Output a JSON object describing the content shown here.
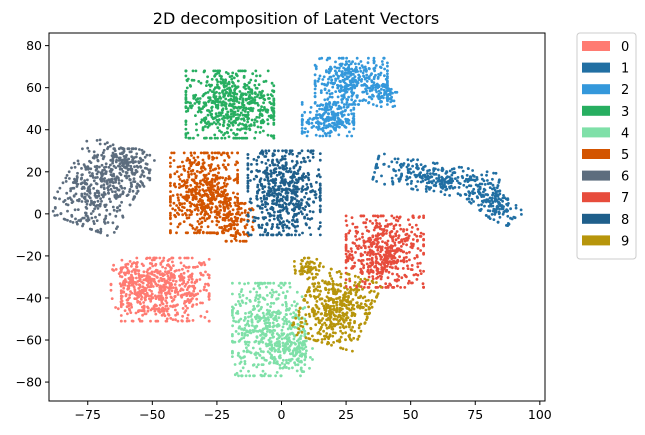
{
  "chart_data": {
    "type": "scatter",
    "title": "2D decomposition of Latent Vectors",
    "xlabel": "",
    "ylabel": "",
    "xlim": [
      -90,
      102
    ],
    "ylim": [
      -89,
      86
    ],
    "x_ticks": [
      -75,
      -50,
      -25,
      0,
      25,
      50,
      75,
      100
    ],
    "y_ticks": [
      -80,
      -60,
      -40,
      -20,
      0,
      20,
      40,
      60,
      80
    ],
    "grid": false,
    "legend_placement": "outside right",
    "series": [
      {
        "name": "0",
        "color": "#ff7b72",
        "clusters": [
          {
            "cx": -45,
            "cy": -36,
            "rx": 17,
            "ry": 15,
            "n": 520
          },
          {
            "cx": -58,
            "cy": -34,
            "rx": 8,
            "ry": 12,
            "n": 130
          }
        ]
      },
      {
        "name": "1",
        "color": "#216fa3",
        "clusters": [
          {
            "cx": 60,
            "cy": 17,
            "rx": 24,
            "ry": 7,
            "n": 300,
            "rot": -12
          },
          {
            "cx": 83,
            "cy": 4,
            "rx": 10,
            "ry": 6,
            "n": 140,
            "rot": -45
          }
        ]
      },
      {
        "name": "2",
        "color": "#3498db",
        "clusters": [
          {
            "cx": 27,
            "cy": 63,
            "rx": 14,
            "ry": 11,
            "n": 360
          },
          {
            "cx": 18,
            "cy": 45,
            "rx": 10,
            "ry": 8,
            "n": 230
          },
          {
            "cx": 40,
            "cy": 57,
            "rx": 5,
            "ry": 6,
            "n": 60
          }
        ]
      },
      {
        "name": "3",
        "color": "#27ae60",
        "clusters": [
          {
            "cx": -20,
            "cy": 52,
            "rx": 17,
            "ry": 16,
            "n": 620
          }
        ]
      },
      {
        "name": "4",
        "color": "#7fe0a8",
        "clusters": [
          {
            "cx": -5,
            "cy": -55,
            "rx": 14,
            "ry": 22,
            "n": 520
          },
          {
            "cx": 5,
            "cy": -66,
            "rx": 7,
            "ry": 9,
            "n": 90
          }
        ]
      },
      {
        "name": "5",
        "color": "#d35400",
        "clusters": [
          {
            "cx": -30,
            "cy": 10,
            "rx": 13,
            "ry": 19,
            "n": 560
          },
          {
            "cx": -18,
            "cy": -4,
            "rx": 7,
            "ry": 9,
            "n": 120
          }
        ]
      },
      {
        "name": "6",
        "color": "#5d6d7e",
        "clusters": [
          {
            "cx": -70,
            "cy": 13,
            "rx": 14,
            "ry": 20,
            "n": 420,
            "rot": -25
          },
          {
            "cx": -60,
            "cy": 22,
            "rx": 9,
            "ry": 9,
            "n": 140
          }
        ]
      },
      {
        "name": "7",
        "color": "#e74c3c",
        "clusters": [
          {
            "cx": 40,
            "cy": -18,
            "rx": 15,
            "ry": 17,
            "n": 520
          }
        ]
      },
      {
        "name": "8",
        "color": "#1f5f8b",
        "clusters": [
          {
            "cx": 1,
            "cy": 10,
            "rx": 14,
            "ry": 20,
            "n": 600
          }
        ]
      },
      {
        "name": "9",
        "color": "#b7950b",
        "clusters": [
          {
            "cx": 21,
            "cy": -45,
            "rx": 13,
            "ry": 17,
            "n": 480,
            "rot": -20
          },
          {
            "cx": 10,
            "cy": -26,
            "rx": 5,
            "ry": 5,
            "n": 60
          }
        ]
      }
    ]
  }
}
